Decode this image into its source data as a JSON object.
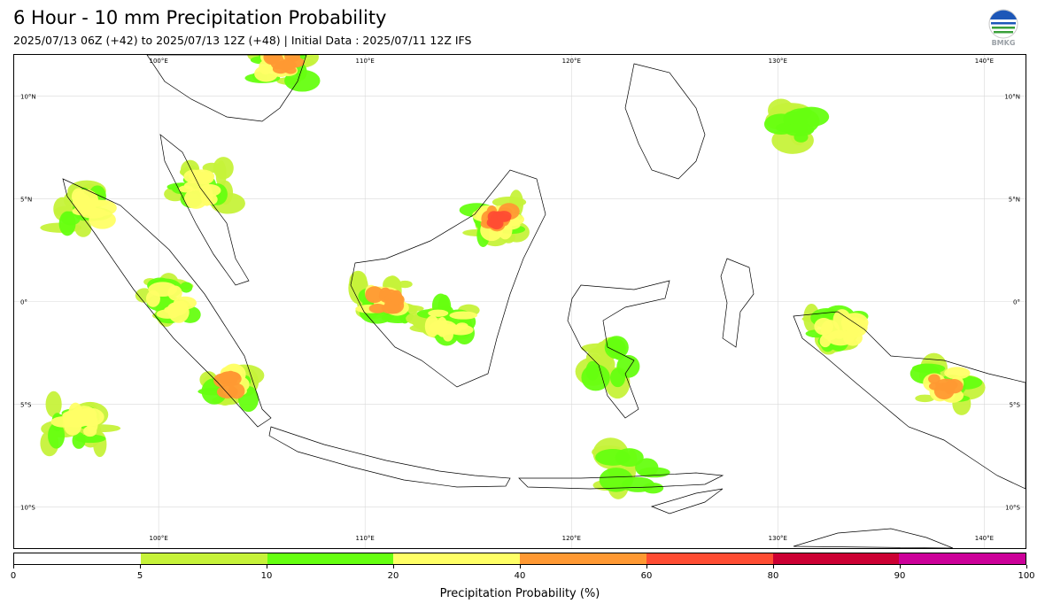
{
  "header": {
    "title": "6 Hour - 10 mm Precipitation Probability",
    "subtitle": "2025/07/13 06Z (+42) to 2025/07/13 12Z (+48) | Initial Data : 2025/07/11 12Z IFS",
    "logo_text": "BMKG"
  },
  "map": {
    "region": "Indonesia",
    "lon_range": [
      93,
      142
    ],
    "lat_range": [
      -12,
      12
    ],
    "grid": true,
    "lon_labels": [
      "100°E",
      "110°E",
      "120°E",
      "130°E",
      "140°E"
    ],
    "lat_labels": [
      "10°N",
      "5°N",
      "0°",
      "5°S",
      "10°S"
    ],
    "lon_values": [
      100,
      110,
      120,
      130,
      140
    ],
    "lat_values": [
      10,
      5,
      0,
      -5,
      -10
    ],
    "land_color": "#ffffff",
    "coastline_color": "#000000"
  },
  "colorbar": {
    "label": "Precipitation Probability (%)",
    "bounds": [
      "0",
      "5",
      "10",
      "20",
      "40",
      "60",
      "80",
      "90",
      "100"
    ],
    "colors": [
      "#ffffff",
      "#c6f23a",
      "#66ff10",
      "#ffff66",
      "#ff9933",
      "#ff4d33",
      "#cc0033",
      "#cc0099"
    ]
  },
  "precip_areas": [
    {
      "name": "sumatra-north",
      "lon": 96.5,
      "lat": 4.5,
      "level": 20
    },
    {
      "name": "sumatra-central",
      "lon": 100.5,
      "lat": 0,
      "level": 20
    },
    {
      "name": "sumatra-south",
      "lon": 103.5,
      "lat": -4,
      "level": 40
    },
    {
      "name": "malay-peninsula",
      "lon": 102,
      "lat": 5.5,
      "level": 20
    },
    {
      "name": "borneo-west",
      "lon": 111,
      "lat": 0,
      "level": 40
    },
    {
      "name": "borneo-north",
      "lon": 116.5,
      "lat": 4,
      "level": 60
    },
    {
      "name": "borneo-central",
      "lon": 114,
      "lat": -1,
      "level": 20
    },
    {
      "name": "indian-ocean-west",
      "lon": 96,
      "lat": -6,
      "level": 20
    },
    {
      "name": "papua",
      "lon": 138,
      "lat": -4,
      "level": 40
    },
    {
      "name": "vietnam-north",
      "lon": 106,
      "lat": 11.5,
      "level": 40
    },
    {
      "name": "pacific-northeast",
      "lon": 131,
      "lat": 8.5,
      "level": 10
    },
    {
      "name": "sulawesi",
      "lon": 122,
      "lat": -3,
      "level": 10
    },
    {
      "name": "nusa-tenggara",
      "lon": 123,
      "lat": -8.3,
      "level": 10
    },
    {
      "name": "bird-head",
      "lon": 133,
      "lat": -1.5,
      "level": 20
    }
  ]
}
